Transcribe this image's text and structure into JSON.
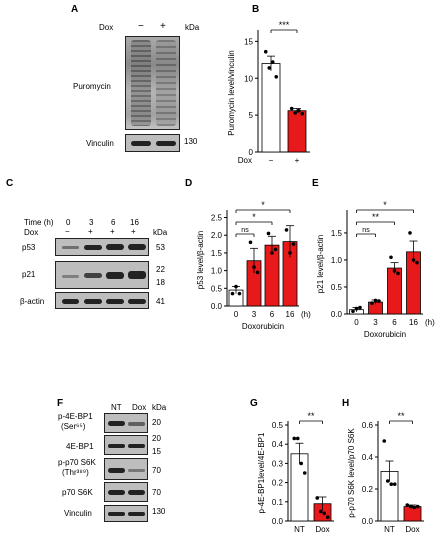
{
  "panels": {
    "A": "A",
    "B": "B",
    "C": "C",
    "D": "D",
    "E": "E",
    "F": "F",
    "G": "G",
    "H": "H"
  },
  "blotA": {
    "dox_label": "Dox",
    "minus": "−",
    "plus": "+",
    "kda": "kDa",
    "puromycin": "Puromycin",
    "vinculin": "Vinculin",
    "mw_vinculin": "130"
  },
  "blotC": {
    "time_label": "Time (h)",
    "dox_label": "Dox",
    "times": [
      "0",
      "3",
      "6",
      "16"
    ],
    "dox_signs": [
      "−",
      "+",
      "+",
      "+"
    ],
    "kda": "kDa",
    "rows": [
      {
        "label": "p53",
        "mw": "53"
      },
      {
        "label": "p21",
        "mw": "22",
        "mw2": "18"
      },
      {
        "label": "β-actin",
        "mw": "41"
      }
    ]
  },
  "blotF": {
    "nt": "NT",
    "dox": "Dox",
    "kda": "kDa",
    "rows": [
      {
        "label": "p-4E-BP1",
        "sub": "(Ser⁶⁵)",
        "mw": "20"
      },
      {
        "label": "4E-BP1",
        "mw": "20",
        "mw2": "15"
      },
      {
        "label": "p-p70 S6K",
        "sub": "(Thr³⁸⁹)",
        "mw": "70"
      },
      {
        "label": "p70 S6K",
        "mw": "70"
      },
      {
        "label": "Vinculin",
        "mw": "130"
      }
    ]
  },
  "chart_data": [
    {
      "id": "B",
      "type": "bar",
      "categories": [
        "−",
        "+"
      ],
      "xlabel_prefix": "Dox",
      "values": [
        12.0,
        5.6
      ],
      "errors": [
        1.0,
        0.3
      ],
      "points": [
        [
          13.6,
          11.4,
          12.2,
          10.2
        ],
        [
          5.9,
          5.3,
          5.6,
          5.2
        ]
      ],
      "ylabel": "Puromycin level/vinculin",
      "ylim": [
        0,
        16
      ],
      "yticks": [
        0,
        5,
        10,
        15
      ],
      "sig": [
        {
          "a": 0,
          "b": 1,
          "label": "***"
        }
      ],
      "colors": [
        "#ffffff",
        "#e8191b"
      ]
    },
    {
      "id": "D",
      "type": "bar",
      "categories": [
        "0",
        "3",
        "6",
        "16"
      ],
      "unit": "(h)",
      "xlabel": "Doxorubicin",
      "values": [
        0.45,
        1.28,
        1.72,
        1.82
      ],
      "errors": [
        0.1,
        0.35,
        0.25,
        0.45
      ],
      "points": [
        [
          0.35,
          0.55,
          0.35
        ],
        [
          1.8,
          1.1,
          0.95
        ],
        [
          2.05,
          1.5,
          1.6
        ],
        [
          2.15,
          1.5,
          1.75
        ]
      ],
      "ylabel": "p53 level/β-actin",
      "ylim": [
        0,
        2.6
      ],
      "yticks": [
        0.0,
        0.5,
        1.0,
        1.5,
        2.0,
        2.5
      ],
      "sig": [
        {
          "a": 0,
          "b": 1,
          "label": "ns"
        },
        {
          "a": 0,
          "b": 2,
          "label": "*"
        },
        {
          "a": 0,
          "b": 3,
          "label": "*"
        }
      ],
      "colors": [
        "#ffffff",
        "#e8191b",
        "#e8191b",
        "#e8191b"
      ]
    },
    {
      "id": "E",
      "type": "bar",
      "categories": [
        "0",
        "3",
        "6",
        "16"
      ],
      "unit": "(h)",
      "xlabel": "Doxorubicin",
      "values": [
        0.08,
        0.22,
        0.85,
        1.15
      ],
      "errors": [
        0.04,
        0.04,
        0.1,
        0.2
      ],
      "points": [
        [
          0.05,
          0.1,
          0.12
        ],
        [
          0.2,
          0.25,
          0.24
        ],
        [
          1.05,
          0.8,
          0.75
        ],
        [
          1.5,
          1.0,
          0.95
        ]
      ],
      "ylabel": "p21 level/β-actin",
      "ylim": [
        0,
        1.85
      ],
      "yticks": [
        0.0,
        0.5,
        1.0,
        1.5
      ],
      "sig": [
        {
          "a": 0,
          "b": 1,
          "label": "ns"
        },
        {
          "a": 0,
          "b": 2,
          "label": "**"
        },
        {
          "a": 0,
          "b": 3,
          "label": "*"
        }
      ],
      "colors": [
        "#ffffff",
        "#e8191b",
        "#e8191b",
        "#e8191b"
      ]
    },
    {
      "id": "G",
      "type": "bar",
      "categories": [
        "NT",
        "Dox"
      ],
      "values": [
        0.35,
        0.09
      ],
      "errors": [
        0.055,
        0.035
      ],
      "points": [
        [
          0.43,
          0.43,
          0.3,
          0.25
        ],
        [
          0.12,
          0.05,
          0.04,
          0.02
        ]
      ],
      "ylabel": "p-4E-BP1level/4E-BP1",
      "ylim": [
        0,
        0.5
      ],
      "yticks": [
        0.0,
        0.1,
        0.2,
        0.3,
        0.4,
        0.5
      ],
      "sig": [
        {
          "a": 0,
          "b": 1,
          "label": "**"
        }
      ],
      "colors": [
        "#ffffff",
        "#e8191b"
      ]
    },
    {
      "id": "H",
      "type": "bar",
      "categories": [
        "NT",
        "Dox"
      ],
      "values": [
        0.31,
        0.09
      ],
      "errors": [
        0.065,
        0.01
      ],
      "points": [
        [
          0.5,
          0.25,
          0.23,
          0.23
        ],
        [
          0.1,
          0.09,
          0.085,
          0.09
        ]
      ],
      "ylabel": "p-p70 S6K level/p70 S6K",
      "ylim": [
        0,
        0.6
      ],
      "yticks": [
        0.0,
        0.2,
        0.4,
        0.6
      ],
      "sig": [
        {
          "a": 0,
          "b": 1,
          "label": "**"
        }
      ],
      "colors": [
        "#ffffff",
        "#e8191b"
      ]
    }
  ]
}
